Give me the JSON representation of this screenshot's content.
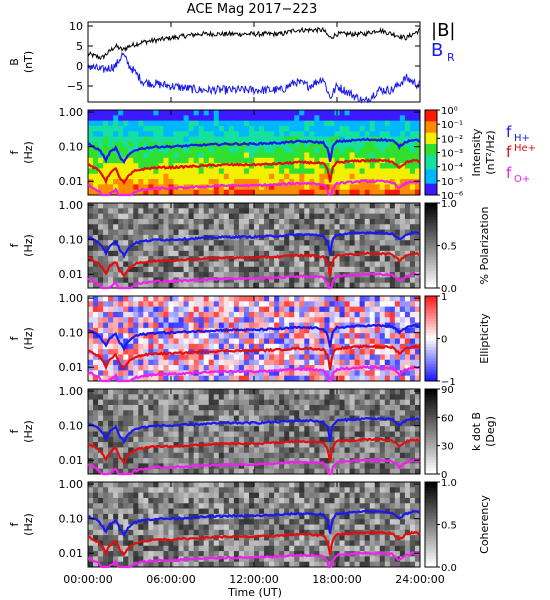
{
  "title": "ACE Mag 2017−223",
  "chart_data": [
    {
      "type": "line",
      "panel": "magnetic-field",
      "ylabel": "B",
      "yunit": "(nT)",
      "ylim": [
        -9,
        11
      ],
      "yticks": [
        -5,
        0,
        5,
        10
      ],
      "x_hours": [
        0,
        1,
        2,
        2.5,
        3,
        4,
        6,
        8,
        10,
        12,
        14,
        15,
        16,
        17,
        17.5,
        18,
        19,
        20,
        21,
        22,
        23,
        24
      ],
      "series": [
        {
          "name": "|B|",
          "color": "#000000",
          "values": [
            3,
            2,
            5,
            4,
            5,
            6,
            7,
            8,
            8,
            8,
            8,
            9,
            9,
            9,
            7,
            8,
            8,
            8,
            9,
            8,
            7,
            9
          ]
        },
        {
          "name": "B",
          "subscript": "R",
          "color": "#1a1aee",
          "values": [
            0,
            -1,
            0,
            3,
            0,
            -4,
            -5,
            -6,
            -6,
            -6,
            -6,
            -4,
            -5,
            -3,
            -8,
            -5,
            -7,
            -9,
            -6,
            -6,
            -3,
            -5
          ]
        }
      ]
    },
    {
      "type": "heatmap",
      "panel": "intensity",
      "ylabel": "f",
      "yunit": "(Hz)",
      "yticks": [
        "1.00",
        "0.10",
        "0.01"
      ],
      "colorbar": {
        "label": "Intensity",
        "unit": "(nT²/Hz)",
        "ticks": [
          "10⁰",
          "10⁻¹",
          "10⁻²",
          "10⁻³",
          "10⁻⁴",
          "10⁻⁵",
          "10⁻⁶"
        ],
        "range": [
          -6,
          0
        ]
      },
      "gyro_lines": [
        {
          "name": "H+",
          "color": "#1a1aee"
        },
        {
          "name": "He+",
          "color": "#e01010"
        },
        {
          "name": "O+",
          "color": "#ee22ee"
        }
      ]
    },
    {
      "type": "heatmap",
      "panel": "polarization",
      "ylabel": "f",
      "yunit": "(Hz)",
      "yticks": [
        "1.00",
        "0.10",
        "0.01"
      ],
      "colorbar": {
        "label": "% Polarization",
        "ticks": [
          "1.0",
          "0.5",
          "0.0"
        ],
        "range": [
          0,
          1
        ]
      }
    },
    {
      "type": "heatmap",
      "panel": "ellipticity",
      "ylabel": "f",
      "yunit": "(Hz)",
      "yticks": [
        "1.00",
        "0.10",
        "0.01"
      ],
      "colorbar": {
        "label": "Ellipticity",
        "ticks": [
          "1",
          "0",
          "−1"
        ],
        "range": [
          -1,
          1
        ]
      }
    },
    {
      "type": "heatmap",
      "panel": "kdotb",
      "ylabel": "f",
      "yunit": "(Hz)",
      "yticks": [
        "1.00",
        "0.10",
        "0.01"
      ],
      "colorbar": {
        "label": "k dot B",
        "unit": "(Deg)",
        "ticks": [
          "90",
          "60",
          "30",
          "0"
        ],
        "range": [
          0,
          90
        ]
      }
    },
    {
      "type": "heatmap",
      "panel": "coherency",
      "ylabel": "f",
      "yunit": "(Hz)",
      "yticks": [
        "1.00",
        "0.10",
        "0.01"
      ],
      "colorbar": {
        "label": "Coherency",
        "ticks": [
          "1.0",
          "0.5",
          "0.0"
        ],
        "range": [
          0,
          1
        ]
      }
    }
  ],
  "gyro_frequency": {
    "x_hours": [
      0,
      0.8,
      1.3,
      1.6,
      2,
      2.3,
      2.6,
      3,
      3.4,
      4,
      5,
      6,
      8,
      10,
      12,
      14,
      15,
      16,
      17,
      17.3,
      17.5,
      17.7,
      18,
      19,
      20,
      21,
      22,
      22.5,
      23,
      23.5,
      24
    ],
    "H_plus_hz": [
      0.12,
      0.08,
      0.04,
      0.07,
      0.09,
      0.05,
      0.035,
      0.06,
      0.08,
      0.09,
      0.1,
      0.1,
      0.11,
      0.12,
      0.12,
      0.13,
      0.14,
      0.14,
      0.13,
      0.09,
      0.035,
      0.1,
      0.14,
      0.15,
      0.16,
      0.16,
      0.15,
      0.1,
      0.14,
      0.16,
      0.15
    ]
  },
  "xaxis": {
    "label": "Time (UT)",
    "ticks": [
      "00:00:00",
      "06:00:00",
      "12:00:00",
      "18:00:00",
      "24:00:00"
    ],
    "range_hours": [
      0,
      24
    ]
  }
}
